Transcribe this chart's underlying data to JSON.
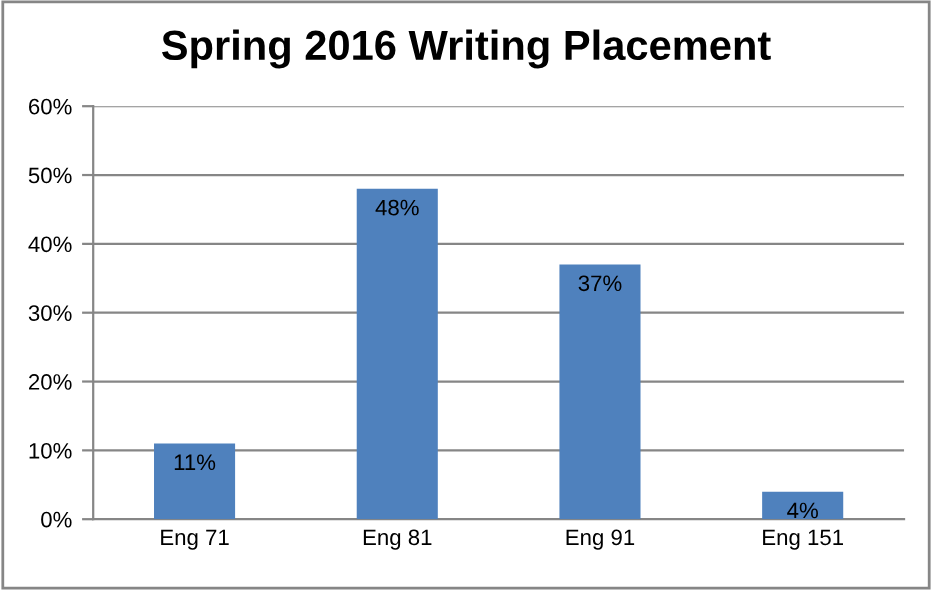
{
  "chart_data": {
    "type": "bar",
    "title": "Spring 2016 Writing Placement",
    "categories": [
      "Eng 71",
      "Eng 81",
      "Eng 91",
      "Eng 151"
    ],
    "values": [
      11,
      48,
      37,
      4
    ],
    "value_labels": [
      "11%",
      "48%",
      "37%",
      "4%"
    ],
    "color": "#4f81bd",
    "ylim": [
      0,
      60
    ],
    "yticks": [
      {
        "value": 0,
        "label": "0%"
      },
      {
        "value": 10,
        "label": "10%"
      },
      {
        "value": 20,
        "label": "20%"
      },
      {
        "value": 30,
        "label": "30%"
      },
      {
        "value": 40,
        "label": "40%"
      },
      {
        "value": 50,
        "label": "50%"
      },
      {
        "value": 60,
        "label": "60%"
      }
    ],
    "grid": "y",
    "legend": false
  }
}
